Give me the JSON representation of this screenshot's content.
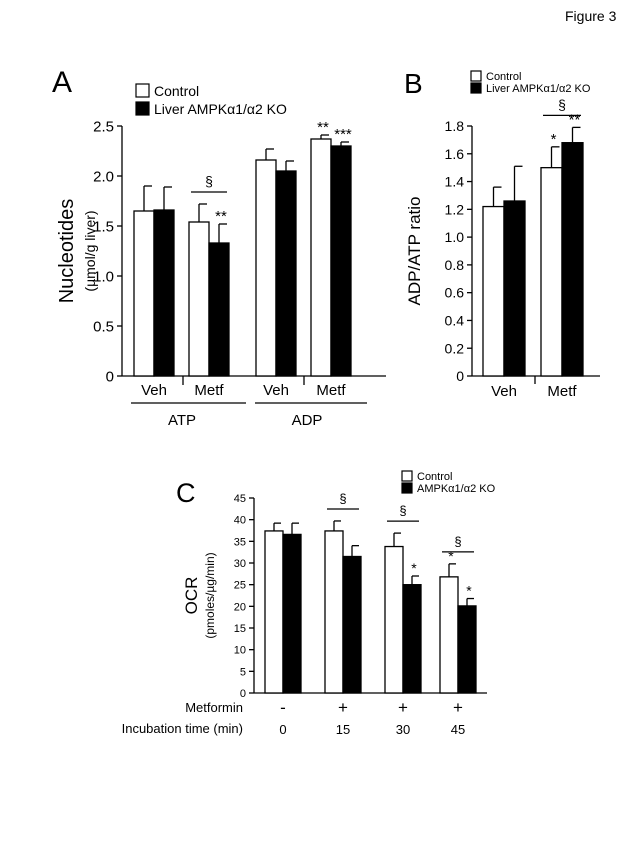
{
  "figure": {
    "title": "Figure 3"
  },
  "legend_colors": {
    "control": "#ffffff",
    "ko": "#000000",
    "stroke": "#000000"
  },
  "chart_data": [
    {
      "panel": "A",
      "type": "bar",
      "ylabel": "Nucleotides",
      "ylabel_unit": "(µmol/g liver)",
      "ylim": [
        0,
        2.5
      ],
      "yticks": [
        "0",
        "0.5",
        "1.0",
        "1.5",
        "2.0",
        "2.5"
      ],
      "legend": {
        "placement": "top",
        "entries": [
          "Control",
          "Liver AMPKα1/α2 KO"
        ]
      },
      "groups": [
        {
          "label": "Veh",
          "metabolite": "ATP",
          "values": [
            1.65,
            1.66
          ],
          "errors": [
            0.25,
            0.23
          ],
          "marks": [
            "",
            ""
          ]
        },
        {
          "label": "Metf",
          "metabolite": "ATP",
          "values": [
            1.54,
            1.33
          ],
          "errors": [
            0.18,
            0.19
          ],
          "marks": [
            "",
            "**"
          ]
        },
        {
          "label": "Veh",
          "metabolite": "ADP",
          "values": [
            2.16,
            2.05
          ],
          "errors": [
            0.11,
            0.1
          ],
          "marks": [
            "",
            ""
          ]
        },
        {
          "label": "Metf",
          "metabolite": "ADP",
          "values": [
            2.37,
            2.3
          ],
          "errors": [
            0.04,
            0.04
          ],
          "marks": [
            "**",
            "***"
          ]
        }
      ],
      "category_labels": [
        "ATP",
        "ADP"
      ],
      "significance": [
        {
          "symbol": "§",
          "group": 1
        }
      ]
    },
    {
      "panel": "B",
      "type": "bar",
      "ylabel": "ADP/ATP ratio",
      "ylim": [
        0,
        1.8
      ],
      "yticks": [
        "0",
        "0.2",
        "0.4",
        "0.6",
        "0.8",
        "1.0",
        "1.2",
        "1.4",
        "1.6",
        "1.8"
      ],
      "legend": {
        "placement": "top",
        "entries": [
          "Control",
          "Liver AMPKα1/α2 KO"
        ]
      },
      "groups": [
        {
          "label": "Veh",
          "values": [
            1.22,
            1.26
          ],
          "errors": [
            0.14,
            0.25
          ],
          "marks": [
            "",
            ""
          ]
        },
        {
          "label": "Metf",
          "values": [
            1.5,
            1.68
          ],
          "errors": [
            0.15,
            0.11
          ],
          "marks": [
            "*",
            "**"
          ]
        }
      ],
      "significance": [
        {
          "symbol": "§",
          "group": 1
        }
      ]
    },
    {
      "panel": "C",
      "type": "bar",
      "ylabel": "OCR",
      "ylabel_unit": "(pmoles/µg/min)",
      "ylim": [
        0,
        45
      ],
      "yticks": [
        "0",
        "5",
        "10",
        "15",
        "20",
        "25",
        "30",
        "35",
        "40",
        "45"
      ],
      "legend": {
        "placement": "top-right",
        "entries": [
          "Control",
          "AMPKα1/α2 KO"
        ]
      },
      "groups": [
        {
          "values": [
            37.4,
            36.6
          ],
          "errors": [
            1.8,
            2.6
          ],
          "marks": [
            "",
            ""
          ]
        },
        {
          "values": [
            37.4,
            31.5
          ],
          "errors": [
            2.3,
            2.5
          ],
          "marks": [
            "",
            ""
          ]
        },
        {
          "values": [
            33.8,
            25.0
          ],
          "errors": [
            3.1,
            2.0
          ],
          "marks": [
            "",
            "*"
          ]
        },
        {
          "values": [
            26.8,
            20.1
          ],
          "errors": [
            3.0,
            1.7
          ],
          "marks": [
            "*",
            "*"
          ]
        }
      ],
      "row_labels": [
        "Metformin",
        "Incubation time (min)"
      ],
      "metformin": [
        "-",
        "+",
        "+",
        "+"
      ],
      "incubation_time": [
        "0",
        "15",
        "30",
        "45"
      ],
      "significance": [
        {
          "symbol": "§",
          "group": 1
        },
        {
          "symbol": "§",
          "group": 2
        },
        {
          "symbol": "§",
          "group": 3
        }
      ]
    }
  ]
}
